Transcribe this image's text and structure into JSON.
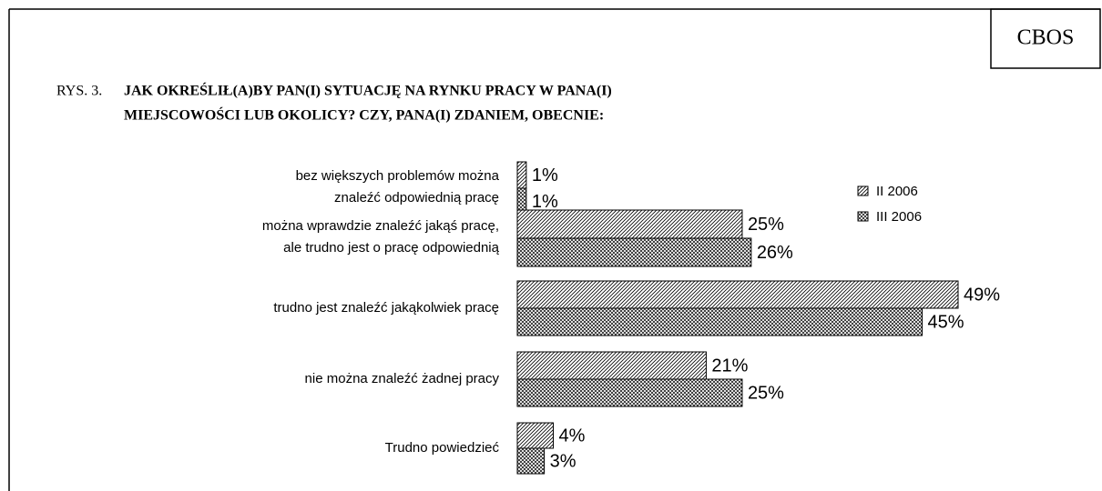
{
  "chart_data": {
    "type": "bar",
    "orientation": "horizontal",
    "source": "CBOS",
    "figure_label": "RYS. 3.",
    "title": [
      "JAK OKREŚLIŁ(A)BY PAN(I) SYTUACJĘ NA RYNKU PRACY W PANA(I)",
      "MIEJSCOWOŚCI LUB OKOLICY? CZY, PANA(I) ZDANIEM, OBECNIE:"
    ],
    "categories": [
      [
        "bez większych problemów można",
        "znaleźć odpowiednią pracę"
      ],
      [
        "można wprawdzie znaleźć jakąś pracę,",
        "ale trudno jest o pracę odpowiednią"
      ],
      [
        "trudno jest znaleźć jakąkolwiek pracę"
      ],
      [
        "nie można znaleźć żadnej pracy"
      ],
      [
        "Trudno powiedzieć"
      ]
    ],
    "series": [
      {
        "name": "II 2006",
        "color": "#000000",
        "pattern": "diagonal",
        "values": [
          1,
          25,
          49,
          21,
          4
        ],
        "value_labels": [
          "1%",
          "25%",
          "49%",
          "21%",
          "4%"
        ]
      },
      {
        "name": "III 2006",
        "color": "#000000",
        "pattern": "cross",
        "values": [
          1,
          26,
          45,
          25,
          3
        ],
        "value_labels": [
          "1%",
          "26%",
          "45%",
          "25%",
          "3%"
        ]
      }
    ],
    "legend": "right"
  }
}
